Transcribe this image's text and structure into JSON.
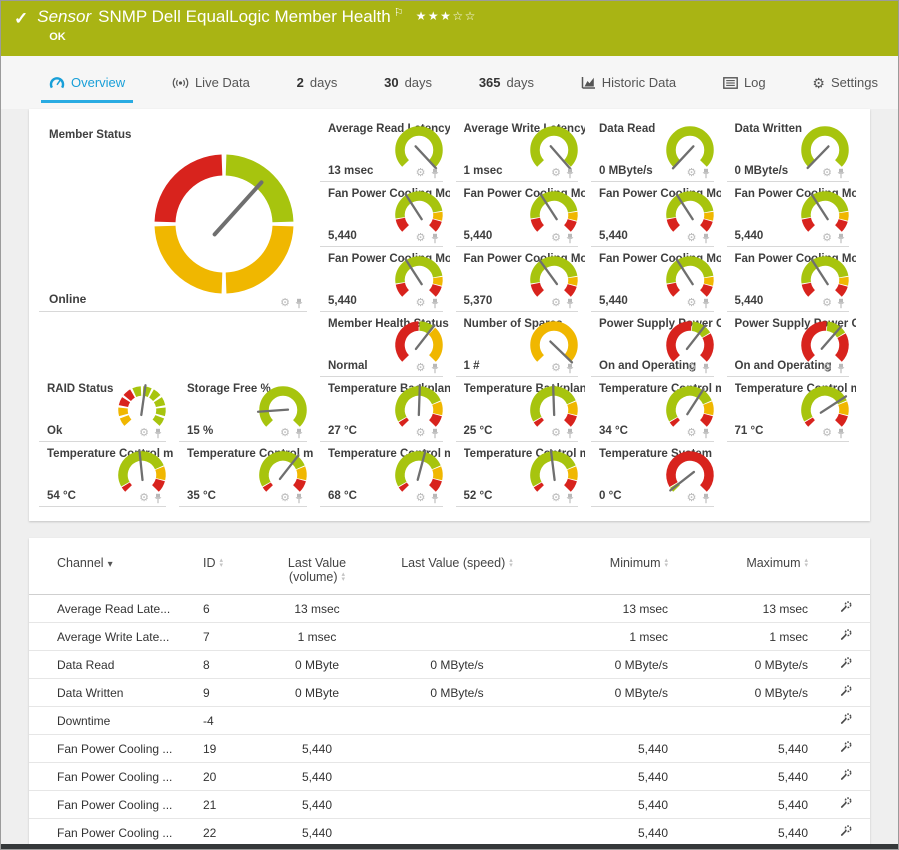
{
  "colors": {
    "green": "#a7c40e",
    "yellow": "#f0b700",
    "red": "#d8231d",
    "needle": "#6f6f6f",
    "accent_blue": "#29abe2",
    "header_green": "#a9b414"
  },
  "header": {
    "check_icon": "check-icon",
    "type_label": "Sensor",
    "title": "SNMP Dell EqualLogic Member Health",
    "flag_icon": "flag-icon",
    "rating": {
      "filled": 3,
      "total": 5
    },
    "status": "OK"
  },
  "tabs": [
    {
      "id": "overview",
      "icon": "gauge-icon",
      "label": "Overview",
      "active": true
    },
    {
      "id": "live-data",
      "icon": "live-data-icon",
      "label": "Live Data"
    },
    {
      "id": "2-days",
      "num": "2",
      "label": "days"
    },
    {
      "id": "30-days",
      "num": "30",
      "label": "days"
    },
    {
      "id": "365-days",
      "num": "365",
      "label": "days"
    },
    {
      "id": "historic-data",
      "icon": "chart-icon",
      "label": "Historic Data"
    },
    {
      "id": "log",
      "icon": "log-icon",
      "label": "Log"
    },
    {
      "id": "settings",
      "icon": "gear-icon",
      "label": "Settings"
    }
  ],
  "gauge_presets": {
    "all_green": [
      [
        "green",
        0,
        1
      ]
    ],
    "all_yellow": [
      [
        "yellow",
        0,
        1
      ]
    ],
    "fan": [
      [
        "red",
        0,
        0.13
      ],
      [
        "green",
        0.13,
        0.8
      ],
      [
        "yellow",
        0.8,
        0.89
      ],
      [
        "red",
        0.89,
        1
      ]
    ],
    "temp": [
      [
        "red",
        0,
        0.055
      ],
      [
        "green",
        0.055,
        0.75
      ],
      [
        "yellow",
        0.75,
        0.885
      ],
      [
        "red",
        0.885,
        1
      ]
    ],
    "health": [
      [
        "red",
        0,
        0.5
      ],
      [
        "green",
        0.5,
        0.655
      ],
      [
        "yellow",
        0.655,
        1
      ]
    ],
    "psu": [
      [
        "red",
        0,
        0.52
      ],
      [
        "green",
        0.52,
        0.72
      ],
      [
        "red",
        0.72,
        1
      ]
    ],
    "temp_system": [
      [
        "green",
        0,
        0.05
      ],
      [
        "red",
        0.05,
        1
      ]
    ]
  },
  "gauges": {
    "big": {
      "title": "Member Status",
      "value": "Online",
      "quadrants": {
        "top_right": "green",
        "bottom_right": "yellow",
        "bottom_left": "yellow",
        "top_left": "red"
      },
      "needle_deg": 42
    },
    "tiles": [
      {
        "title": "Average Read Latency",
        "value": "13 msec",
        "col": 3,
        "row": 1,
        "segs": "all_green",
        "needle": 137
      },
      {
        "title": "Average Write Latency",
        "value": "1 msec",
        "col": 4,
        "row": 1,
        "segs": "all_green",
        "needle": 139
      },
      {
        "title": "Data Read",
        "value": "0 MByte/s",
        "col": 5,
        "row": 1,
        "segs": "all_green",
        "needle": -137
      },
      {
        "title": "Data Written",
        "value": "0 MByte/s",
        "col": 6,
        "row": 1,
        "segs": "all_green",
        "needle": -136
      },
      {
        "title": "Fan Power Cooling Mo...",
        "value": "5,440",
        "col": 3,
        "row": 2,
        "segs": "fan",
        "needle": -33
      },
      {
        "title": "Fan Power Cooling Mo...",
        "value": "5,440",
        "col": 4,
        "row": 2,
        "segs": "fan",
        "needle": -33
      },
      {
        "title": "Fan Power Cooling Mo...",
        "value": "5,440",
        "col": 5,
        "row": 2,
        "segs": "fan",
        "needle": -33
      },
      {
        "title": "Fan Power Cooling Mo...",
        "value": "5,440",
        "col": 6,
        "row": 2,
        "segs": "fan",
        "needle": -33
      },
      {
        "title": "Fan Power Cooling Mo...",
        "value": "5,440",
        "col": 3,
        "row": 3,
        "segs": "fan",
        "needle": -33
      },
      {
        "title": "Fan Power Cooling Mo...",
        "value": "5,370",
        "col": 4,
        "row": 3,
        "segs": "fan",
        "needle": -36
      },
      {
        "title": "Fan Power Cooling Mo...",
        "value": "5,440",
        "col": 5,
        "row": 3,
        "segs": "fan",
        "needle": -33
      },
      {
        "title": "Fan Power Cooling Mo...",
        "value": "5,440",
        "col": 6,
        "row": 3,
        "segs": "fan",
        "needle": -33
      },
      {
        "title": "Member Health Status",
        "value": "Normal",
        "col": 3,
        "row": 4,
        "segs": "health",
        "needle": 38
      },
      {
        "title": "Number of Spares",
        "value": "1 #",
        "col": 4,
        "row": 4,
        "segs": "all_yellow",
        "needle": 134
      },
      {
        "title": "Power Supply Power C...",
        "value": "On and Operating",
        "col": 5,
        "row": 4,
        "segs": "psu",
        "needle": 38
      },
      {
        "title": "Power Supply Power C...",
        "value": "On and Operating",
        "col": 6,
        "row": 4,
        "segs": "psu",
        "needle": 41
      },
      {
        "title": "RAID Status",
        "value": "Ok",
        "col": 1,
        "row": 5,
        "dashes": [
          "yellow",
          "yellow",
          "red",
          "red",
          "green",
          "green",
          "green",
          "green",
          "green",
          "green"
        ],
        "needle": 8
      },
      {
        "title": "Storage Free %",
        "value": "15 %",
        "col": 2,
        "row": 5,
        "segs": "all_green",
        "needle": -94
      },
      {
        "title": "Temperature Backplan...",
        "value": "27 °C",
        "col": 3,
        "row": 5,
        "segs": "temp",
        "needle": 2
      },
      {
        "title": "Temperature Backplan...",
        "value": "25 °C",
        "col": 4,
        "row": 5,
        "segs": "temp",
        "needle": -2
      },
      {
        "title": "Temperature Control m...",
        "value": "34 °C",
        "col": 5,
        "row": 5,
        "segs": "temp",
        "needle": 33
      },
      {
        "title": "Temperature Control m...",
        "value": "71 °C",
        "col": 6,
        "row": 5,
        "segs": "temp",
        "needle": 57
      },
      {
        "title": "Temperature Control m...",
        "value": "54 °C",
        "col": 1,
        "row": 6,
        "segs": "temp",
        "needle": -6
      },
      {
        "title": "Temperature Control m...",
        "value": "35 °C",
        "col": 2,
        "row": 6,
        "segs": "temp",
        "needle": 38
      },
      {
        "title": "Temperature Control m...",
        "value": "68 °C",
        "col": 3,
        "row": 6,
        "segs": "temp",
        "needle": 15
      },
      {
        "title": "Temperature Control m...",
        "value": "52 °C",
        "col": 4,
        "row": 6,
        "segs": "temp",
        "needle": -7
      },
      {
        "title": "Temperature System",
        "value": "0 °C",
        "col": 5,
        "row": 6,
        "segs": "temp_system",
        "needle": -128
      }
    ],
    "tile_icons": [
      "gear-icon",
      "pin-icon"
    ]
  },
  "table": {
    "columns": [
      {
        "label": "Channel",
        "sorted": "desc"
      },
      {
        "label": "ID",
        "sortable": true
      },
      {
        "label": "Last Value (volume)",
        "sortable": true
      },
      {
        "label": "Last Value (speed)",
        "sortable": true
      },
      {
        "label": "Minimum",
        "sortable": true
      },
      {
        "label": "Maximum",
        "sortable": true
      },
      {
        "label": "",
        "sortable": false
      }
    ],
    "row_action_icon": "channel-settings-icon",
    "rows": [
      {
        "channel": "Average Read Late...",
        "id": "6",
        "vol": "13 msec",
        "speed": "",
        "min": "13 msec",
        "max": "13 msec"
      },
      {
        "channel": "Average Write Late...",
        "id": "7",
        "vol": "1 msec",
        "speed": "",
        "min": "1 msec",
        "max": "1 msec"
      },
      {
        "channel": "Data Read",
        "id": "8",
        "vol": "0 MByte",
        "speed": "0 MByte/s",
        "min": "0 MByte/s",
        "max": "0 MByte/s"
      },
      {
        "channel": "Data Written",
        "id": "9",
        "vol": "0 MByte",
        "speed": "0 MByte/s",
        "min": "0 MByte/s",
        "max": "0 MByte/s"
      },
      {
        "channel": "Downtime",
        "id": "-4",
        "vol": "",
        "speed": "",
        "min": "",
        "max": ""
      },
      {
        "channel": "Fan Power Cooling ...",
        "id": "19",
        "vol": "5,440",
        "speed": "",
        "min": "5,440",
        "max": "5,440"
      },
      {
        "channel": "Fan Power Cooling ...",
        "id": "20",
        "vol": "5,440",
        "speed": "",
        "min": "5,440",
        "max": "5,440"
      },
      {
        "channel": "Fan Power Cooling ...",
        "id": "21",
        "vol": "5,440",
        "speed": "",
        "min": "5,440",
        "max": "5,440"
      },
      {
        "channel": "Fan Power Cooling ...",
        "id": "22",
        "vol": "5,440",
        "speed": "",
        "min": "5,440",
        "max": "5,440"
      }
    ]
  }
}
